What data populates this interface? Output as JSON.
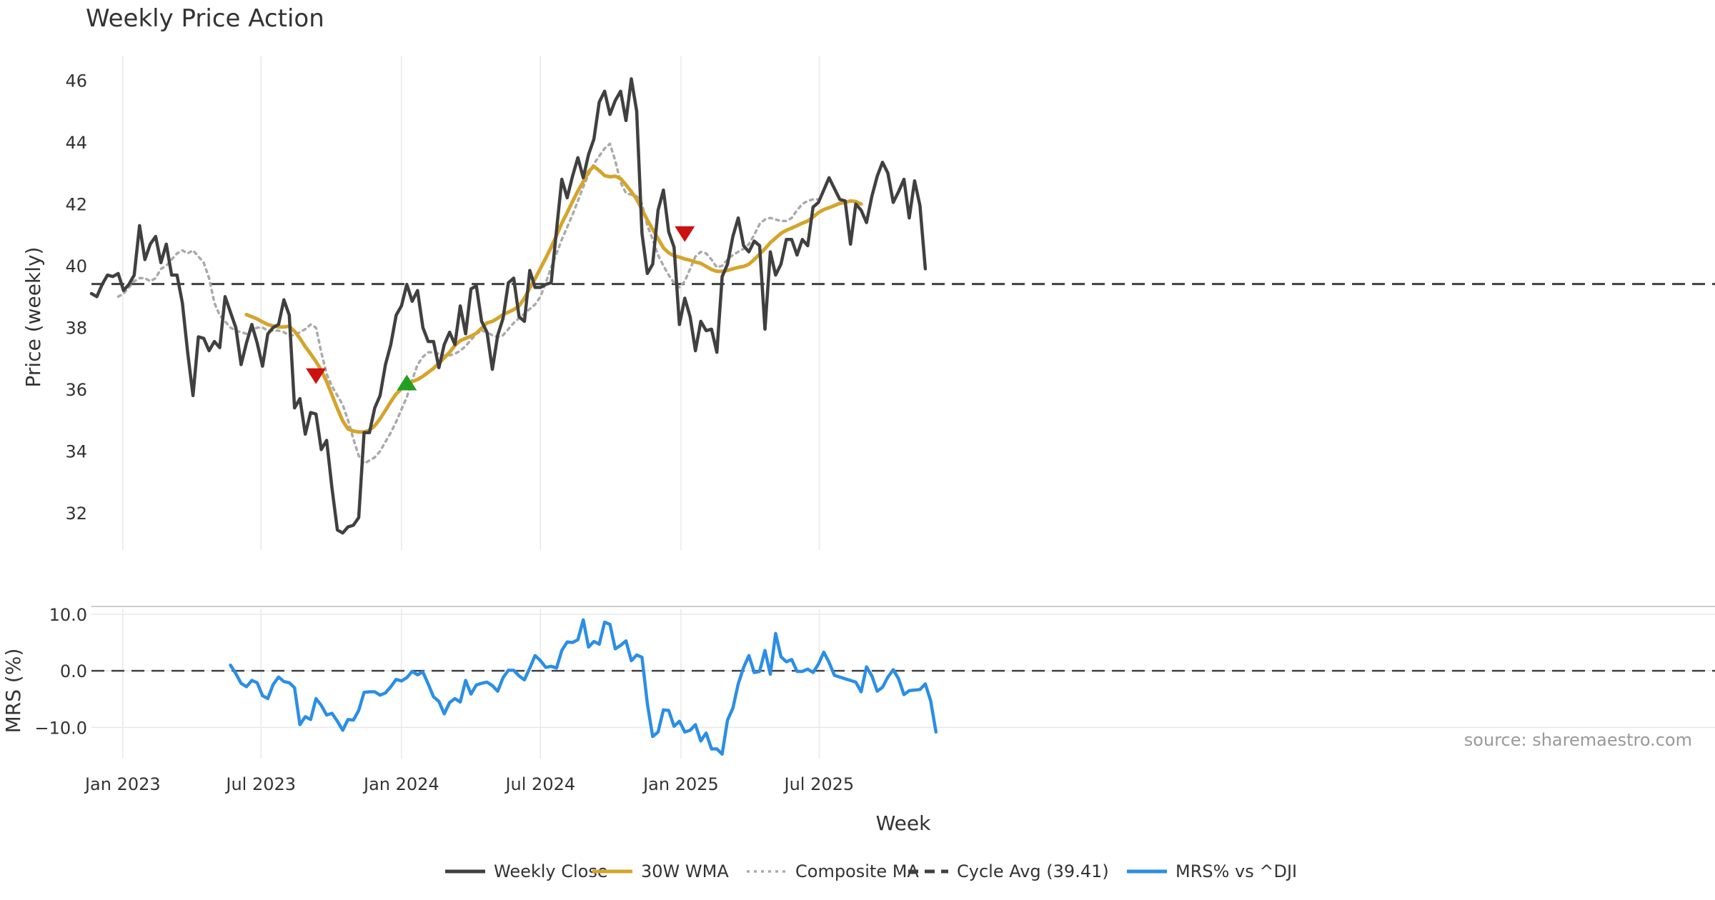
{
  "title": "Weekly Price Action",
  "source_note": "source: sharemaestro.com",
  "colors": {
    "weekly_close": "#404040",
    "wma": "#d4a42c",
    "composite": "#aaaaaa",
    "cycle_avg": "#404040",
    "mrs": "#2b8ee6",
    "sell_marker": "#cc1111",
    "buy_marker": "#22a022",
    "grid": "#e8e8e8"
  },
  "chart_data": [
    {
      "type": "line",
      "title": "Weekly Price Action",
      "xlabel": "",
      "ylabel": "Price (weekly)",
      "ylim": [
        30.8,
        46.8
      ],
      "yticks": [
        32,
        34,
        36,
        38,
        40,
        42,
        44,
        46
      ],
      "grid": true,
      "x_start": "2022-11-21",
      "x_step_days": 7,
      "series": [
        {
          "name": "Weekly Close",
          "values": [
            39.1,
            39.0,
            39.4,
            39.7,
            39.65,
            39.75,
            39.2,
            39.4,
            39.7,
            41.3,
            40.2,
            40.7,
            40.95,
            40.1,
            40.7,
            39.7,
            39.7,
            38.8,
            37.2,
            35.8,
            37.7,
            37.65,
            37.25,
            37.55,
            37.35,
            39.0,
            38.5,
            38.0,
            36.8,
            37.5,
            38.1,
            37.5,
            36.75,
            37.8,
            38.0,
            38.1,
            38.9,
            38.4,
            35.4,
            35.7,
            34.55,
            35.25,
            35.2,
            34.05,
            34.35,
            32.8,
            31.45,
            31.35,
            31.55,
            31.6,
            31.85,
            34.6,
            34.6,
            35.4,
            35.8,
            36.8,
            37.45,
            38.4,
            38.7,
            39.4,
            38.85,
            39.2,
            38.0,
            37.55,
            37.55,
            36.7,
            37.45,
            37.85,
            37.45,
            38.7,
            37.8,
            39.25,
            39.35,
            38.2,
            37.85,
            36.65,
            37.75,
            38.3,
            39.45,
            39.6,
            38.35,
            38.2,
            39.85,
            39.3,
            39.3,
            39.4,
            39.45,
            41.15,
            42.8,
            42.2,
            42.9,
            43.5,
            42.85,
            43.6,
            44.1,
            45.3,
            45.65,
            44.9,
            45.35,
            45.65,
            44.7,
            46.05,
            45.0,
            41.05,
            39.75,
            40.05,
            41.8,
            42.45,
            41.1,
            40.6,
            38.1,
            38.95,
            38.35,
            37.25,
            38.2,
            37.9,
            37.95,
            37.2,
            39.65,
            40.05,
            40.95,
            41.55,
            40.65,
            40.45,
            40.8,
            40.65,
            37.95,
            40.45,
            39.7,
            40.05,
            40.85,
            40.85,
            40.35,
            40.85,
            40.65,
            41.9,
            42.05,
            42.45,
            42.85,
            42.5,
            42.15,
            42.1,
            40.7,
            42.0,
            41.8,
            41.4,
            42.25,
            42.9,
            43.35,
            43.0,
            42.05,
            42.4,
            42.8,
            41.55,
            42.75,
            41.95,
            39.9
          ]
        },
        {
          "name": "30W WMA",
          "start_index": 29,
          "values": [
            38.42,
            38.35,
            38.28,
            38.18,
            38.1,
            38.05,
            38.02,
            38.02,
            38.04,
            37.88,
            37.65,
            37.38,
            37.15,
            36.9,
            36.62,
            36.25,
            35.82,
            35.38,
            34.98,
            34.72,
            34.65,
            34.62,
            34.62,
            34.68,
            34.82,
            35.05,
            35.32,
            35.6,
            35.85,
            36.02,
            36.15,
            36.25,
            36.32,
            36.42,
            36.55,
            36.68,
            36.85,
            37.02,
            37.2,
            37.42,
            37.58,
            37.65,
            37.72,
            37.82,
            37.98,
            38.15,
            38.2,
            38.3,
            38.42,
            38.5,
            38.58,
            38.7,
            38.95,
            39.28,
            39.58,
            39.92,
            40.25,
            40.6,
            40.98,
            41.38,
            41.72,
            42.08,
            42.42,
            42.72,
            43.05,
            43.22,
            43.08,
            42.92,
            42.88,
            42.9,
            42.82,
            42.62,
            42.4,
            42.15,
            41.82,
            41.48,
            41.18,
            40.88,
            40.58,
            40.42,
            40.32,
            40.28,
            40.22,
            40.18,
            40.12,
            40.08,
            39.98,
            39.88,
            39.82,
            39.82,
            39.85,
            39.9,
            39.95,
            39.98,
            40.05,
            40.2,
            40.38,
            40.55,
            40.75,
            40.9,
            41.05,
            41.15,
            41.22,
            41.3,
            41.38,
            41.45,
            41.58,
            41.72,
            41.82,
            41.88,
            41.95,
            42.02,
            42.05,
            42.1,
            42.08,
            42.0
          ]
        },
        {
          "name": "Composite MA",
          "values": [
            39.0,
            39.1,
            39.3,
            39.5,
            39.6,
            39.6,
            39.5,
            39.6,
            39.9,
            40.0,
            40.2,
            40.4,
            40.5,
            40.4,
            40.5,
            40.3,
            40.1,
            39.6,
            38.8,
            38.4,
            38.2,
            38.0,
            37.9,
            37.85,
            37.8,
            37.9,
            38.0,
            38.0,
            37.9,
            37.9,
            37.9,
            37.85,
            37.75,
            37.75,
            37.85,
            37.95,
            38.1,
            38.0,
            37.2,
            36.5,
            36.1,
            35.8,
            35.5,
            35.0,
            34.4,
            33.85,
            33.6,
            33.7,
            33.8,
            34.0,
            34.3,
            34.6,
            34.95,
            35.35,
            35.75,
            36.3,
            36.8,
            37.05,
            37.2,
            37.2,
            37.15,
            37.1,
            37.1,
            37.15,
            37.25,
            37.4,
            37.6,
            37.8,
            37.9,
            37.85,
            37.75,
            37.7,
            37.75,
            37.95,
            38.15,
            38.3,
            38.45,
            38.6,
            38.75,
            39.0,
            39.45,
            39.95,
            40.4,
            40.85,
            41.25,
            41.65,
            42.1,
            42.55,
            42.95,
            43.3,
            43.55,
            43.8,
            43.95,
            43.4,
            42.7,
            42.35,
            42.3,
            42.25,
            42.0,
            41.3,
            40.85,
            40.35,
            40.0,
            39.7,
            39.45,
            39.3,
            39.5,
            39.9,
            40.3,
            40.45,
            40.4,
            40.2,
            39.95,
            40.0,
            40.2,
            40.35,
            40.45,
            40.55,
            40.7,
            41.0,
            41.35,
            41.5,
            41.55,
            41.5,
            41.45,
            41.45,
            41.55,
            41.8,
            42.0,
            42.1,
            42.15,
            42.15
          ]
        }
      ],
      "composite_start_index": 5,
      "reference_line": {
        "name": "Cycle Avg (39.41)",
        "value": 39.41
      },
      "markers": [
        {
          "type": "sell",
          "index": 42,
          "value": 36.45
        },
        {
          "type": "buy",
          "index": 59,
          "value": 36.2
        },
        {
          "type": "sell",
          "index": 111,
          "value": 41.05
        }
      ]
    },
    {
      "type": "line",
      "xlabel": "Week",
      "ylabel": "MRS (%)",
      "ylim": [
        -15.5,
        11.0
      ],
      "yticks": [
        10.0,
        0.0,
        -10.0
      ],
      "ytick_labels": [
        "10.0",
        "0.0",
        "−10.0"
      ],
      "reference_line": {
        "value": 0.0
      },
      "x_ticks": [
        "Jan 2023",
        "Jul 2023",
        "Jan 2024",
        "Jul 2024",
        "Jan 2025",
        "Jul 2025"
      ],
      "x_tick_dates": [
        "2023-01-01",
        "2023-07-01",
        "2024-01-01",
        "2024-07-01",
        "2025-01-01",
        "2025-07-01"
      ],
      "series": [
        {
          "name": "MRS% vs ^DJI",
          "start_index": 26,
          "values": [
            1.0,
            -0.5,
            -2.2,
            -2.8,
            -1.7,
            -2.1,
            -4.4,
            -4.9,
            -2.4,
            -1.1,
            -1.9,
            -2.1,
            -3.0,
            -9.5,
            -8.1,
            -8.6,
            -4.9,
            -6.1,
            -7.8,
            -7.5,
            -8.9,
            -10.5,
            -8.6,
            -8.7,
            -7.0,
            -3.8,
            -3.7,
            -3.7,
            -4.3,
            -3.9,
            -2.8,
            -1.5,
            -1.8,
            -1.2,
            -0.1,
            -0.7,
            -0.2,
            -2.3,
            -4.6,
            -5.4,
            -7.6,
            -5.6,
            -4.9,
            -5.5,
            -1.7,
            -4.1,
            -2.5,
            -2.2,
            -2.0,
            -2.6,
            -3.6,
            -1.2,
            0.1,
            0.1,
            -0.9,
            -1.6,
            0.5,
            2.7,
            1.8,
            0.6,
            0.8,
            0.5,
            3.6,
            5.1,
            5.0,
            5.5,
            9.0,
            4.2,
            5.2,
            4.7,
            8.6,
            8.2,
            3.9,
            4.5,
            5.3,
            1.8,
            2.8,
            2.4,
            -5.8,
            -11.6,
            -10.8,
            -6.9,
            -7.0,
            -9.8,
            -8.9,
            -10.8,
            -10.5,
            -9.5,
            -12.4,
            -11.0,
            -13.8,
            -13.8,
            -14.7,
            -8.7,
            -6.6,
            -2.3,
            0.6,
            2.7,
            -0.3,
            -0.1,
            3.6,
            -0.6,
            6.6,
            2.5,
            1.6,
            2.0,
            -0.1,
            -0.1,
            0.3,
            -0.3,
            1.2,
            3.3,
            1.5,
            -0.8,
            -1.1,
            -1.4,
            -1.7,
            -2.0,
            -3.7,
            0.7,
            -0.9,
            -3.6,
            -2.9,
            -1.1,
            0.2,
            -1.4,
            -4.2,
            -3.5,
            -3.4,
            -3.3,
            -2.3,
            -5.3,
            -10.8
          ]
        }
      ]
    }
  ],
  "legend": {
    "position": "bottom-center",
    "items": [
      {
        "label": "Weekly Close",
        "style": "solid",
        "color": "#404040"
      },
      {
        "label": "30W WMA",
        "style": "solid",
        "color": "#d4a42c"
      },
      {
        "label": "Composite MA",
        "style": "dotted",
        "color": "#aaaaaa"
      },
      {
        "label": "Cycle Avg (39.41)",
        "style": "dashed",
        "color": "#404040"
      },
      {
        "label": "MRS% vs ^DJI",
        "style": "solid",
        "color": "#2b8ee6"
      }
    ]
  }
}
